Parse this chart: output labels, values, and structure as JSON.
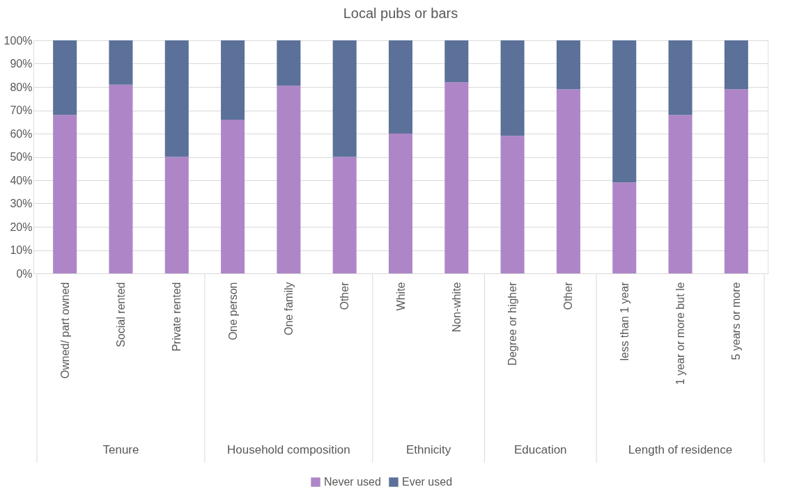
{
  "chart_data": {
    "type": "bar",
    "title": "Local pubs or bars",
    "stacked": true,
    "categories": [
      "Owned/ part owned",
      "Social rented",
      "Private rented",
      "One person",
      "One family",
      "Other",
      "White",
      "Non-white",
      "Degree or higher",
      "Other",
      "less than 1 year",
      "1 year or more but le",
      "5 years or more"
    ],
    "series": [
      {
        "name": "Never used",
        "color": "#ae86c8",
        "values": [
          68,
          81,
          50,
          66,
          80.5,
          50,
          60,
          82,
          59,
          79,
          39,
          68,
          79
        ]
      },
      {
        "name": "Ever used",
        "color": "#5b7199",
        "values": [
          32,
          19,
          50,
          34,
          19.5,
          50,
          40,
          18,
          41,
          21,
          61,
          32,
          21
        ]
      }
    ],
    "ylim": [
      0,
      100
    ],
    "yticks": [
      {
        "value": 0,
        "label": "0%"
      },
      {
        "value": 10,
        "label": "10%"
      },
      {
        "value": 20,
        "label": "20%"
      },
      {
        "value": 30,
        "label": "30%"
      },
      {
        "value": 40,
        "label": "40%"
      },
      {
        "value": 50,
        "label": "50%"
      },
      {
        "value": 60,
        "label": "60%"
      },
      {
        "value": 70,
        "label": "70%"
      },
      {
        "value": 80,
        "label": "80%"
      },
      {
        "value": 90,
        "label": "90%"
      },
      {
        "value": 100,
        "label": "100%"
      }
    ],
    "annotations": [
      "Tenure",
      "Household composition",
      "Ethnicity",
      "Education",
      "Length of residence"
    ],
    "grid": true,
    "legend": "bottom"
  }
}
